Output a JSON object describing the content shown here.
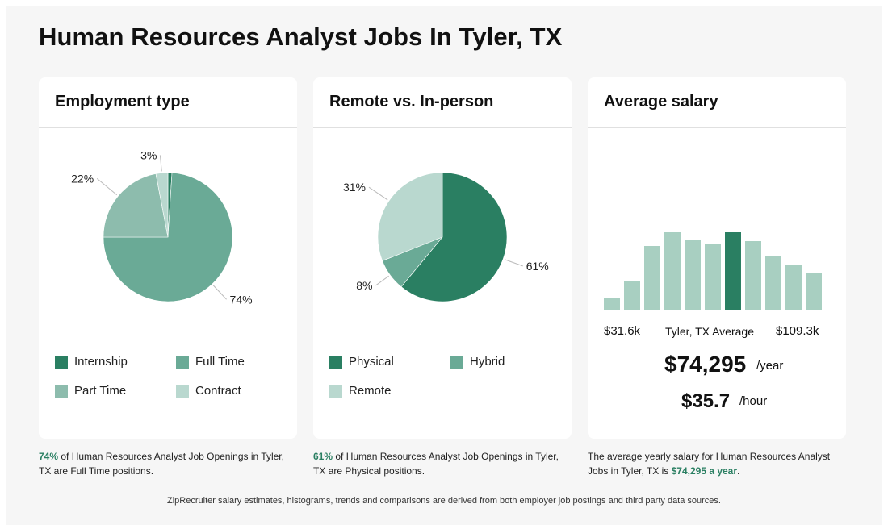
{
  "page": {
    "title": "Human Resources Analyst Jobs In Tyler, TX",
    "footer": "ZipRecruiter salary estimates, histograms, trends and comparisons are derived from both employer job postings and third party data sources."
  },
  "colors": {
    "dark_green": "#2a7f62",
    "mid_green": "#6aaa96",
    "soft_green": "#8dbcad",
    "light_green": "#b9d8cf",
    "highlight_text": "#2a7f62"
  },
  "cards": {
    "employment": {
      "title": "Employment type",
      "legend": [
        "Internship",
        "Full Time",
        "Part Time",
        "Contract"
      ],
      "caption_highlight": "74%",
      "caption_rest": " of Human Resources Analyst Job Openings in Tyler, TX are Full Time positions."
    },
    "remote": {
      "title": "Remote vs. In-person",
      "legend": [
        "Physical",
        "Hybrid",
        "Remote"
      ],
      "caption_highlight": "61%",
      "caption_rest": " of Human Resources Analyst Job Openings in Tyler, TX are Physical positions."
    },
    "salary": {
      "title": "Average salary",
      "min_label": "$31.6k",
      "avg_label": "Tyler, TX Average",
      "max_label": "$109.3k",
      "yearly": "$74,295",
      "yearly_unit": "/year",
      "hourly": "$35.7",
      "hourly_unit": "/hour",
      "caption_start": "The average yearly salary for Human Resources Analyst Jobs in Tyler, TX is ",
      "caption_highlight": "$74,295 a year",
      "caption_end": "."
    }
  },
  "chart_data": [
    {
      "type": "pie",
      "title": "Employment type",
      "categories": [
        "Internship",
        "Full Time",
        "Part Time",
        "Contract"
      ],
      "values": [
        1,
        74,
        22,
        3
      ],
      "value_labels": [
        "",
        "74%",
        "22%",
        "3%"
      ],
      "colors": [
        "#2a7f62",
        "#6aaa96",
        "#8dbcad",
        "#b9d8cf"
      ]
    },
    {
      "type": "pie",
      "title": "Remote vs. In-person",
      "categories": [
        "Physical",
        "Hybrid",
        "Remote"
      ],
      "values": [
        61,
        8,
        31
      ],
      "value_labels": [
        "61%",
        "8%",
        "31%"
      ],
      "colors": [
        "#2a7f62",
        "#6aaa96",
        "#b9d8cf"
      ]
    },
    {
      "type": "bar",
      "title": "Average salary",
      "values": [
        15,
        36,
        80,
        97,
        87,
        83,
        97,
        86,
        68,
        57,
        47
      ],
      "highlight_index": 6,
      "ylim": [
        0,
        100
      ],
      "x_range_labels": [
        "$31.6k",
        "$109.3k"
      ]
    }
  ]
}
